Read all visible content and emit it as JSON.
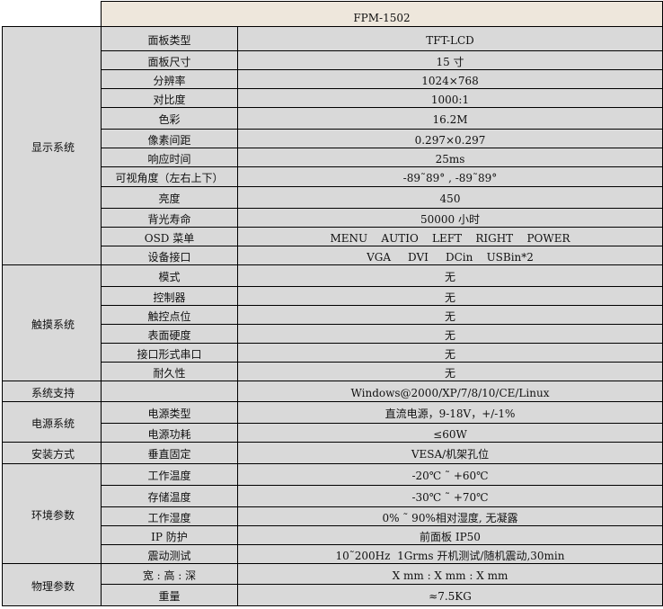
{
  "model": "FPM-1502",
  "colors": {
    "header_bg": "#eee7dc",
    "cell_bg": "#d9d9d9"
  },
  "groups": [
    {
      "name": "显示系统",
      "rows": [
        {
          "label": "面板类型",
          "value": "TFT-LCD",
          "h": 27
        },
        {
          "label": "面板尺寸",
          "value": "15 寸",
          "h": 21
        },
        {
          "label": "分辨率",
          "value": "1024×768",
          "h": 21
        },
        {
          "label": "对比度",
          "value": "1000:1",
          "h": 21
        },
        {
          "label": "色彩",
          "value": "16.2M",
          "h": 24
        },
        {
          "label": "像素间距",
          "value": "0.297×0.297",
          "h": 21
        },
        {
          "label": "响应时间",
          "value": "25ms",
          "h": 21
        },
        {
          "label": "可视角度（左右上下）",
          "value": "-89˜89° , -89˜89°",
          "h": 22
        },
        {
          "label": "亮度",
          "value": "450",
          "h": 24
        },
        {
          "label": "背光寿命",
          "value": "50000 小时",
          "h": 21
        },
        {
          "label": "OSD 菜单",
          "value": "MENU    AUTIO    LEFT    RIGHT    POWER",
          "h": 21
        },
        {
          "label": "设备接口",
          "value": "VGA     DVI     DCin    USBin*2",
          "h": 21
        }
      ]
    },
    {
      "name": "触摸系统",
      "rows": [
        {
          "label": "模式",
          "value": "无",
          "h": 24
        },
        {
          "label": "控制器",
          "value": "无",
          "h": 21
        },
        {
          "label": "触控点位",
          "value": "无",
          "h": 21
        },
        {
          "label": "表面硬度",
          "value": "无",
          "h": 21
        },
        {
          "label": "接口形式串口",
          "value": "无",
          "h": 21
        },
        {
          "label": "耐久性",
          "value": "无",
          "h": 21
        }
      ]
    },
    {
      "name": "系统支持",
      "rows": [
        {
          "label": "",
          "value": "Windows@2000/XP/7/8/10/CE/Linux",
          "h": 23
        }
      ]
    },
    {
      "name": "电源系统",
      "rows": [
        {
          "label": "电源类型",
          "value": "直流电源，9-18V，+/-1%",
          "h": 24
        },
        {
          "label": "电源功耗",
          "value": "≤60W",
          "h": 21
        }
      ]
    },
    {
      "name": "安装方式",
      "rows": [
        {
          "label": "垂直固定",
          "value": "VESA/机架孔位",
          "h": 24
        }
      ]
    },
    {
      "name": "环境参数",
      "rows": [
        {
          "label": "工作温度",
          "value": "-20℃ ˜ +60℃",
          "h": 24
        },
        {
          "label": "存储温度",
          "value": "-30℃ ˜ +70℃",
          "h": 24
        },
        {
          "label": "工作湿度",
          "value": "0% ˜ 90%相对湿度, 无凝露",
          "h": 21
        },
        {
          "label": "IP 防护",
          "value": "前面板 IP50",
          "h": 21
        },
        {
          "label": "震动测试",
          "value": "10˜200Hz  1Grms 开机测试/随机震动,30min",
          "h": 21
        }
      ]
    },
    {
      "name": "物理参数",
      "rows": [
        {
          "label": "宽 : 高 : 深",
          "value": "X mm : X mm : X mm",
          "h": 23
        },
        {
          "label": "重量",
          "value": "≈7.5KG",
          "h": 24
        }
      ]
    }
  ]
}
